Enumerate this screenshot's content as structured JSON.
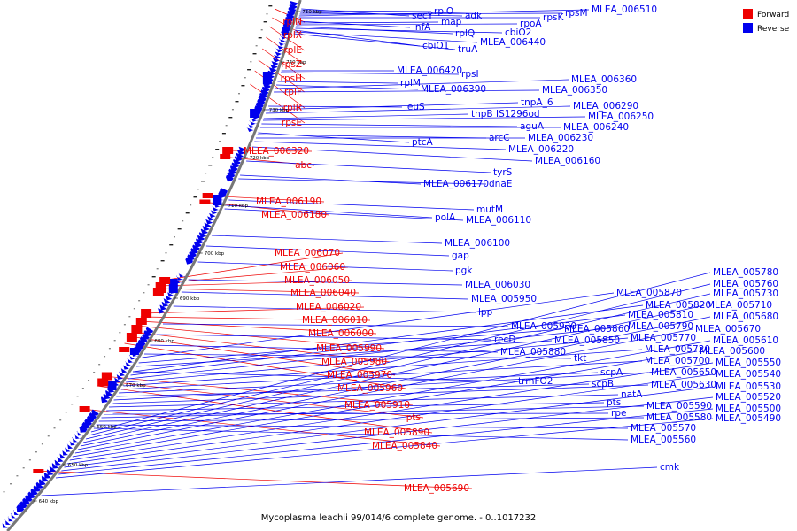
{
  "caption": "Mycoplasma leachii 99/014/6 complete genome. - 0..1017232",
  "legend": [
    {
      "label": "Forward",
      "color": "#ee0000"
    },
    {
      "label": "Reverse",
      "color": "#0000ee"
    }
  ],
  "colors": {
    "forward": "#ee0000",
    "reverse": "#0000ee",
    "backbone": "#777777"
  },
  "ticks": [
    "750 kbp",
    "740 kbp",
    "730 kbp",
    "720 kbp",
    "710 kbp",
    "700 kbp",
    "690 kbp",
    "680 kbp",
    "670 kbp",
    "660 kbp",
    "650 kbp",
    "640 kbp"
  ],
  "forward_labels": [
    "rplN",
    "rplX",
    "rplE",
    "rpsZ",
    "rpsH",
    "rplF",
    "rplR",
    "rpsE",
    "MLEA_006320",
    "abc",
    "MLEA_006190",
    "MLEA_006180",
    "MLEA_006070",
    "MLEA_006060",
    "MLEA_006050",
    "MLEA_006040",
    "MLEA_006020",
    "MLEA_006010",
    "MLEA_006000",
    "MLEA_005990",
    "MLEA_005980",
    "MLEA_005970",
    "MLEA_005960",
    "MLEA_005910",
    "pts",
    "MLEA_005890",
    "MLEA_005840",
    "MLEA_005690"
  ],
  "reverse_labels": [
    "secY",
    "rplO",
    "adk",
    "rpsM",
    "MLEA_006510",
    "rpsK",
    "infA",
    "map",
    "rpoA",
    "rplQ",
    "cbiO2",
    "cbiO1",
    "MLEA_006440",
    "truA",
    "MLEA_006420",
    "rpsI",
    "rplM",
    "MLEA_006390",
    "MLEA_006360",
    "MLEA_006350",
    "leuS",
    "tnpA_6",
    "MLEA_006290",
    "tnpB IS1296od",
    "MLEA_006250",
    "aguA",
    "MLEA_006240",
    "ptcA",
    "arcC",
    "MLEA_006230",
    "MLEA_006220",
    "MLEA_006160",
    "tyrS",
    "MLEA_006170",
    "dnaE",
    "mutM",
    "polA",
    "MLEA_006110",
    "MLEA_006100",
    "gap",
    "pgk",
    "MLEA_006030",
    "MLEA_005950",
    "lpp",
    "MLEA_005930",
    "recD",
    "MLEA_005880",
    "tkt",
    "trmFO2",
    "MLEA_005870",
    "MLEA_005860",
    "MLEA_005850",
    "MLEA_005820",
    "MLEA_005810",
    "MLEA_005790",
    "MLEA_005770",
    "MLEA_005720",
    "MLEA_005700",
    "scpA",
    "scpB",
    "MLEA_005650",
    "MLEA_005630",
    "natA",
    "pts",
    "rpe",
    "MLEA_005590",
    "MLEA_005580",
    "MLEA_005570",
    "MLEA_005560",
    "MLEA_005780",
    "MLEA_005760",
    "MLEA_005730",
    "MLEA_005710",
    "MLEA_005680",
    "MLEA_005670",
    "MLEA_005610",
    "MLEA_005600",
    "MLEA_005550",
    "MLEA_005540",
    "MLEA_005530",
    "MLEA_005520",
    "MLEA_005500",
    "MLEA_005490",
    "cmk"
  ]
}
